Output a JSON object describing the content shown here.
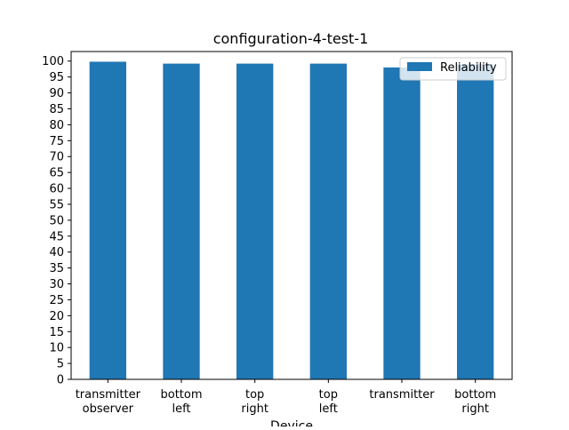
{
  "chart_data": {
    "type": "bar",
    "title": "configuration-4-test-1",
    "xlabel": "Device",
    "ylabel": "",
    "categories": [
      [
        "transmitter",
        "observer"
      ],
      [
        "bottom",
        "left"
      ],
      [
        "top",
        "right"
      ],
      [
        "top",
        "left"
      ],
      [
        "transmitter"
      ],
      [
        "bottom",
        "right"
      ]
    ],
    "series": [
      {
        "name": "Reliability",
        "color": "#1f77b4",
        "values": [
          99.8,
          99.2,
          99.2,
          99.2,
          98.0,
          99.0
        ]
      }
    ],
    "ylim": [
      0,
      103
    ],
    "yticks": [
      0,
      5,
      10,
      15,
      20,
      25,
      30,
      35,
      40,
      45,
      50,
      55,
      60,
      65,
      70,
      75,
      80,
      85,
      90,
      95,
      100
    ],
    "grid": false,
    "legend": "top-right"
  }
}
